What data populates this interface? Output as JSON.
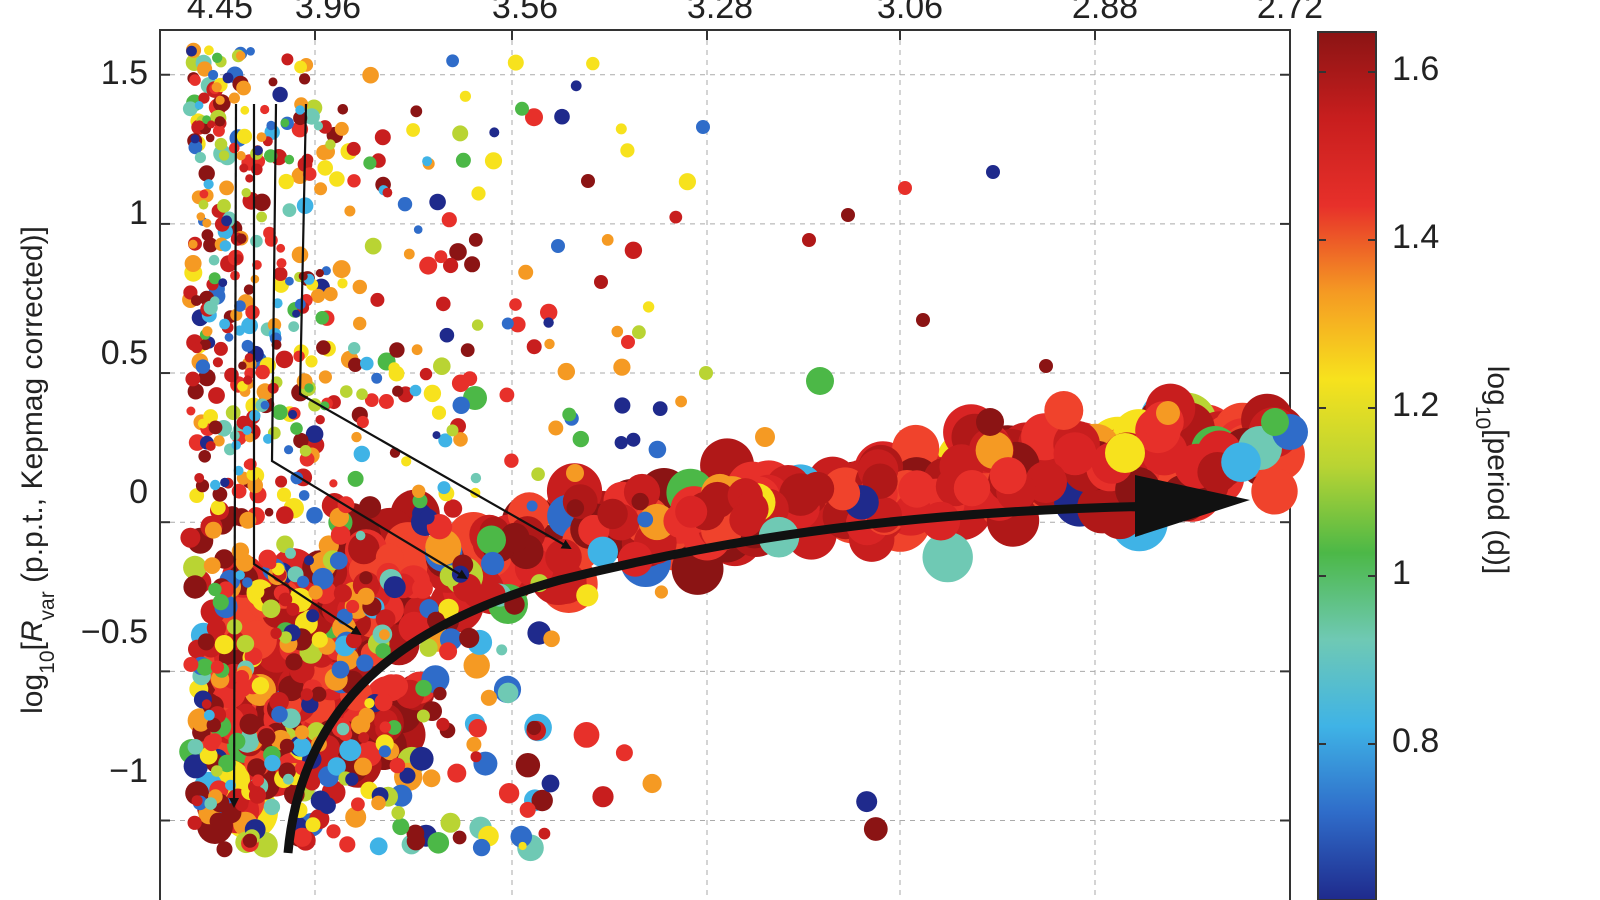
{
  "chart_data": {
    "type": "scatter",
    "title": "",
    "top_axis": {
      "tick_labels": [
        "4.45",
        "3.96",
        "3.56",
        "3.28",
        "3.06",
        "2.88",
        "2.72"
      ]
    },
    "yaxis": {
      "label_parts": {
        "prefix": "log",
        "sub": "10",
        "open": "[",
        "var": "R",
        "var_sub": "var",
        "suffix": "  (p.p.t., Kepmag corrected)]"
      },
      "tick_labels": [
        "1.5",
        "1",
        "0.5",
        "0",
        "−0.5",
        "−1"
      ],
      "ylim": [
        -1.3,
        1.65
      ]
    },
    "colorbar": {
      "label_parts": {
        "prefix": "log",
        "sub": "10",
        "rest": "[period (d)]"
      },
      "tick_labels": [
        "1.6",
        "1.4",
        "1.2",
        "1",
        "0.8"
      ],
      "range": [
        0.58,
        1.65
      ],
      "colors": [
        "#1f2a8c",
        "#2f6cc9",
        "#3fb3e6",
        "#6fc9b4",
        "#4cb847",
        "#b9d433",
        "#f7e21d",
        "#f59a23",
        "#e7302a",
        "#c81e1e",
        "#8b1414"
      ]
    },
    "grid": true,
    "annotations": [
      "thin arrows showing spin-down evolution",
      "thick curved arrow along upper envelope"
    ],
    "seed": 7
  }
}
